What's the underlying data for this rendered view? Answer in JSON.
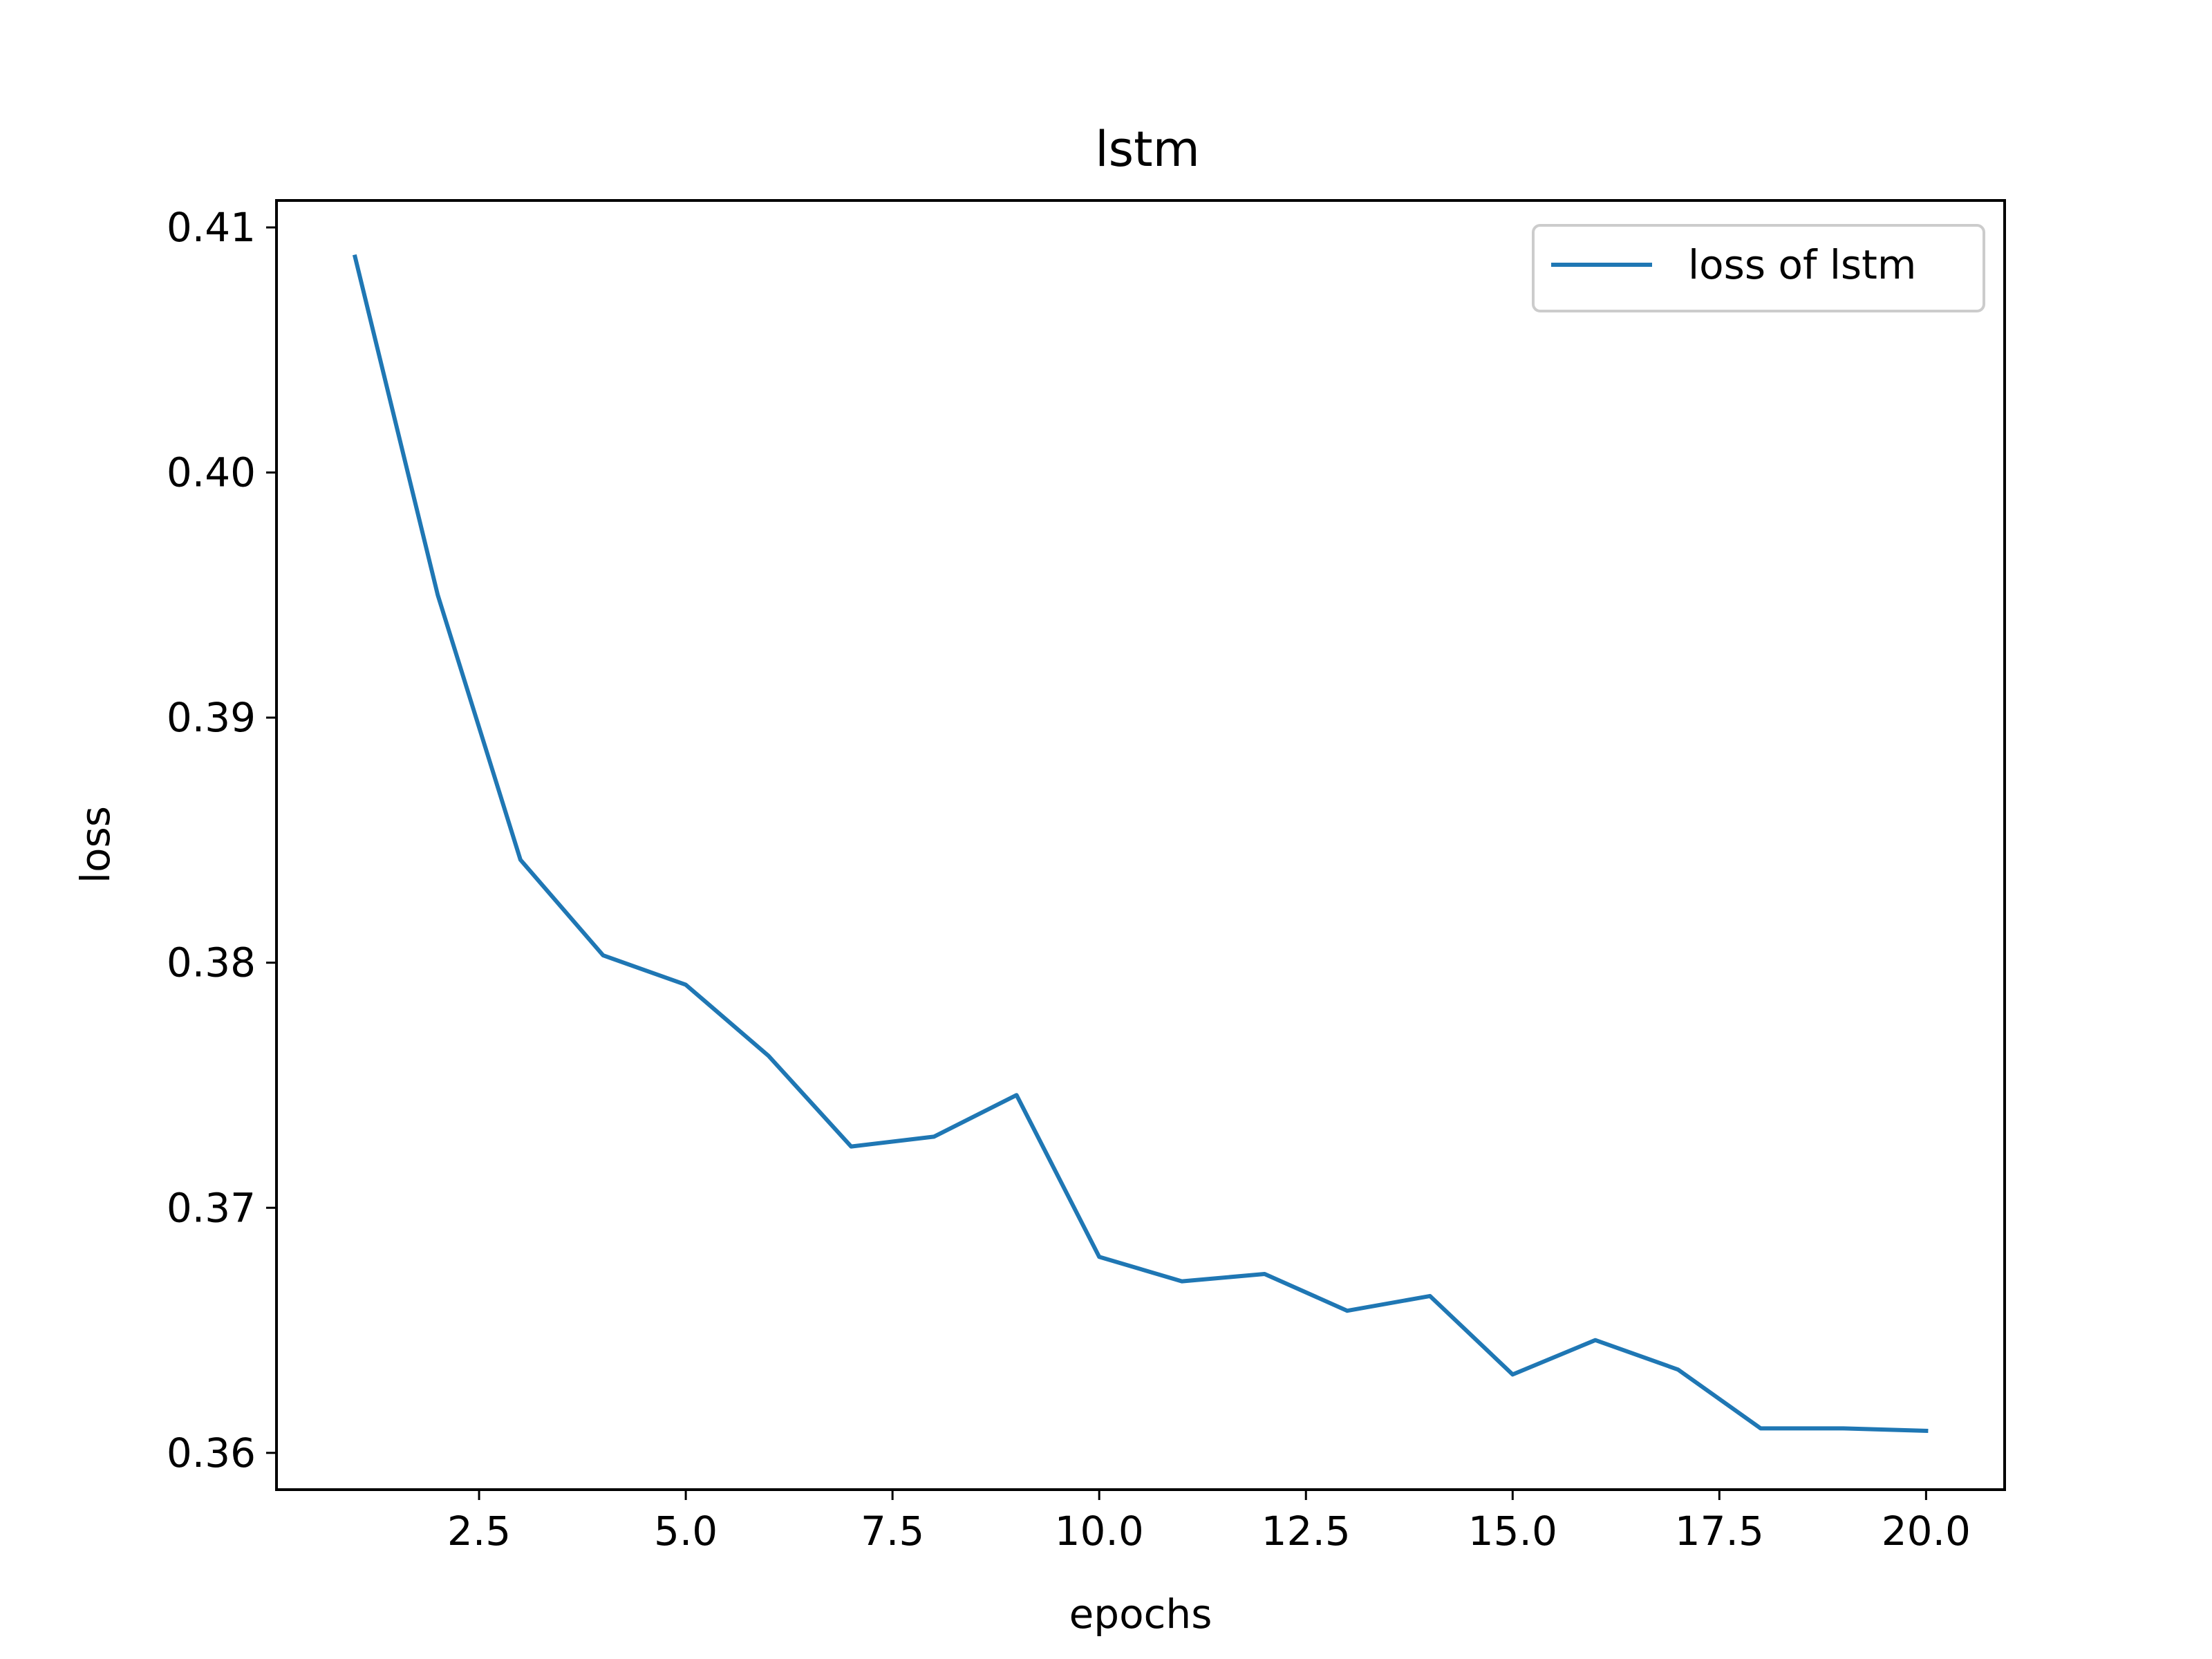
{
  "chart_data": {
    "type": "line",
    "title": "lstm",
    "xlabel": "epochs",
    "ylabel": "loss",
    "xlim": [
      0.05,
      20.95
    ],
    "ylim": [
      0.3585,
      0.4111
    ],
    "xticks": [
      2.5,
      5.0,
      7.5,
      10.0,
      12.5,
      15.0,
      17.5,
      20.0
    ],
    "xtick_labels": [
      "2.5",
      "5.0",
      "7.5",
      "10.0",
      "12.5",
      "15.0",
      "17.5",
      "20.0"
    ],
    "yticks": [
      0.36,
      0.37,
      0.38,
      0.39,
      0.4,
      0.41
    ],
    "ytick_labels": [
      "0.36",
      "0.37",
      "0.38",
      "0.39",
      "0.40",
      "0.41"
    ],
    "grid": false,
    "legend_position": "top-right",
    "series": [
      {
        "name": "loss of lstm",
        "color": "#1f77b4",
        "x": [
          1,
          2,
          3,
          4,
          5,
          6,
          7,
          8,
          9,
          10,
          11,
          12,
          13,
          14,
          15,
          16,
          17,
          18,
          19,
          20
        ],
        "y": [
          0.4088,
          0.395,
          0.3842,
          0.3803,
          0.3791,
          0.3762,
          0.3725,
          0.3729,
          0.3746,
          0.368,
          0.367,
          0.3673,
          0.3658,
          0.3664,
          0.3632,
          0.3646,
          0.3634,
          0.361,
          0.361,
          0.3609
        ]
      }
    ]
  }
}
